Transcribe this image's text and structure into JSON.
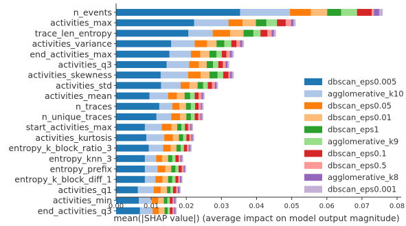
{
  "chart_data": {
    "type": "bar",
    "orientation": "horizontal",
    "stacked": true,
    "xlabel": "mean(|SHAP value|) (average impact on model output magnitude)",
    "ylabel": "",
    "xlim": [
      0,
      0.08
    ],
    "xticks": [
      "0.00",
      "0.01",
      "0.02",
      "0.03",
      "0.04",
      "0.05",
      "0.06",
      "0.07",
      "0.08"
    ],
    "legend_position": "lower-right",
    "grid": false,
    "categories": [
      "n_events",
      "activities_max",
      "trace_len_entropy",
      "activities_variance",
      "end_activities_max",
      "activities_q3",
      "activities_skewness",
      "activities_std",
      "activities_mean",
      "n_traces",
      "n_unique_traces",
      "start_activities_max",
      "activities_kurtosis",
      "entropy_k_block_ratio_3",
      "entropy_knn_3",
      "entropy_prefix",
      "entropy_k_block_diff_1",
      "activities_q1",
      "activities_min",
      "end_activities_q3"
    ],
    "series": [
      {
        "name": "dbscan_eps0.005",
        "color": "#1f77b4",
        "values": [
          0.0353,
          0.0222,
          0.0206,
          0.0157,
          0.0152,
          0.0144,
          0.0127,
          0.0128,
          0.0095,
          0.0123,
          0.0115,
          0.0082,
          0.0086,
          0.0093,
          0.0082,
          0.0082,
          0.0082,
          0.0062,
          0.0065,
          0.0068
        ]
      },
      {
        "name": "agglomerative_k10",
        "color": "#aec7e8",
        "values": [
          0.0142,
          0.0098,
          0.0069,
          0.0067,
          0.0061,
          0.0064,
          0.0078,
          0.0056,
          0.0053,
          0.0037,
          0.0042,
          0.0048,
          0.0051,
          0.0041,
          0.0032,
          0.0036,
          0.003,
          0.0045,
          0.0037,
          0.0036
        ]
      },
      {
        "name": "dbscan_eps0.05",
        "color": "#ff7f0e",
        "values": [
          0.006,
          0.004,
          0.005,
          0.0035,
          0.0027,
          0.0028,
          0.0036,
          0.0025,
          0.0025,
          0.002,
          0.0025,
          0.0028,
          0.0025,
          0.0022,
          0.0017,
          0.0022,
          0.002,
          0.002,
          0.0018,
          0.0018
        ]
      },
      {
        "name": "dbscan_eps0.01",
        "color": "#ffbb78",
        "values": [
          0.0046,
          0.0038,
          0.0038,
          0.0027,
          0.0026,
          0.0022,
          0.0025,
          0.0023,
          0.0022,
          0.0019,
          0.0018,
          0.0016,
          0.0017,
          0.0016,
          0.0017,
          0.0017,
          0.0016,
          0.0018,
          0.0016,
          0.0016
        ]
      },
      {
        "name": "dbscan_eps1",
        "color": "#2ca02c",
        "values": [
          0.004,
          0.003,
          0.0028,
          0.0022,
          0.002,
          0.0018,
          0.0023,
          0.0016,
          0.0016,
          0.0014,
          0.0013,
          0.0012,
          0.0012,
          0.0012,
          0.0012,
          0.0012,
          0.0012,
          0.001,
          0.001,
          0.0009
        ]
      },
      {
        "name": "agglomerative_k9",
        "color": "#98df8a",
        "values": [
          0.0045,
          0.003,
          0.002,
          0.002,
          0.0015,
          0.0015,
          0.0016,
          0.0013,
          0.0013,
          0.0012,
          0.0011,
          0.001,
          0.0009,
          0.0009,
          0.0009,
          0.0009,
          0.0009,
          0.0007,
          0.0007,
          0.0006
        ]
      },
      {
        "name": "dbscan_eps0.1",
        "color": "#d62728",
        "values": [
          0.0042,
          0.0025,
          0.002,
          0.0015,
          0.0013,
          0.0013,
          0.0015,
          0.0012,
          0.0011,
          0.001,
          0.001,
          0.0009,
          0.0009,
          0.0009,
          0.0009,
          0.0009,
          0.0008,
          0.0009,
          0.0008,
          0.0008
        ]
      },
      {
        "name": "dbscan_eps0.5",
        "color": "#ff9896",
        "values": [
          0.0006,
          0.0015,
          0.0012,
          0.001,
          0.001,
          0.0008,
          0.0004,
          0.0008,
          0.0008,
          0.0006,
          0.0006,
          0.0006,
          0.0005,
          0.0005,
          0.0005,
          0.0005,
          0.0005,
          0.0005,
          0.0004,
          0.0004
        ]
      },
      {
        "name": "agglomerative_k8",
        "color": "#9467bd",
        "values": [
          0.0015,
          0.0007,
          0.0006,
          0.0006,
          0.0006,
          0.0005,
          0.0006,
          0.0005,
          0.0005,
          0.0004,
          0.0004,
          0.0004,
          0.0004,
          0.0004,
          0.0004,
          0.0004,
          0.0004,
          0.0004,
          0.0004,
          0.0004
        ]
      },
      {
        "name": "dbscan_eps0.001",
        "color": "#c5b0d5",
        "values": [
          0.001,
          0.0006,
          0.0006,
          0.0005,
          0.0005,
          0.0005,
          0.0005,
          0.0004,
          0.0004,
          0.0004,
          0.0004,
          0.0004,
          0.0004,
          0.0004,
          0.0004,
          0.0003,
          0.0003,
          0.0004,
          0.0003,
          0.0003
        ]
      }
    ]
  }
}
